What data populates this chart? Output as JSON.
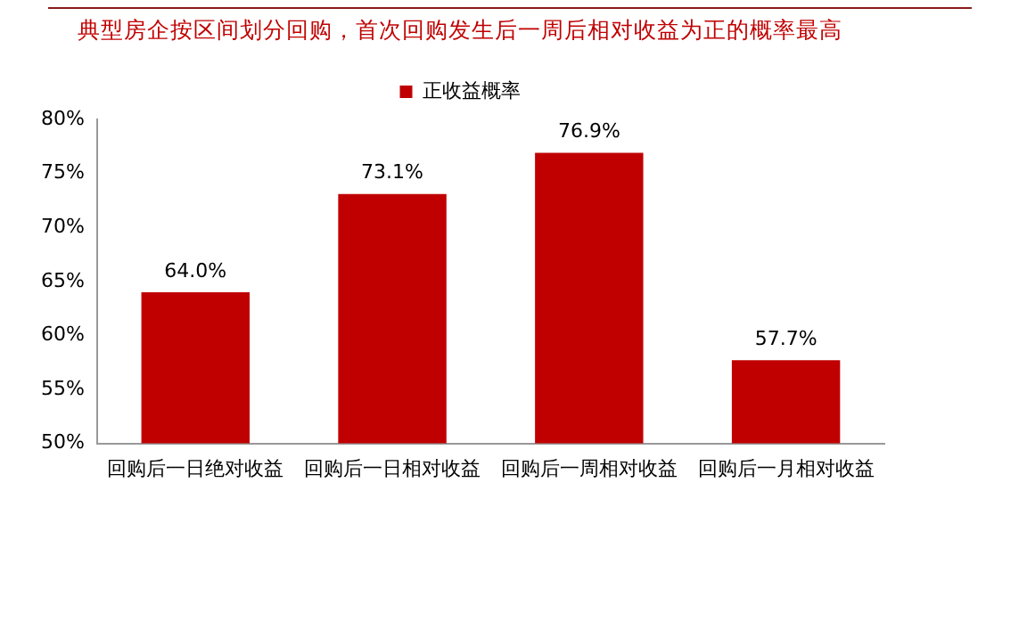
{
  "chart_data": {
    "type": "bar",
    "title": "典型房企按区间划分回购，首次回购发生后一周后相对收益为正的概率最高",
    "categories": [
      "回购后一日绝对收益",
      "回购后一日相对收益",
      "回购后一周相对收益",
      "回购后一月相对收益"
    ],
    "series": [
      {
        "name": "正收益概率",
        "color": "#c00000",
        "values": [
          64.0,
          73.1,
          76.9,
          57.7
        ],
        "value_labels": [
          "64.0%",
          "73.1%",
          "76.9%",
          "57.7%"
        ]
      }
    ],
    "ylim": [
      50,
      80
    ],
    "yticks": [
      {
        "value": 50,
        "label": "50%"
      },
      {
        "value": 55,
        "label": "55%"
      },
      {
        "value": 60,
        "label": "60%"
      },
      {
        "value": 65,
        "label": "65%"
      },
      {
        "value": 70,
        "label": "70%"
      },
      {
        "value": 75,
        "label": "75%"
      },
      {
        "value": 80,
        "label": "80%"
      }
    ],
    "grid": false,
    "legend": "top"
  }
}
